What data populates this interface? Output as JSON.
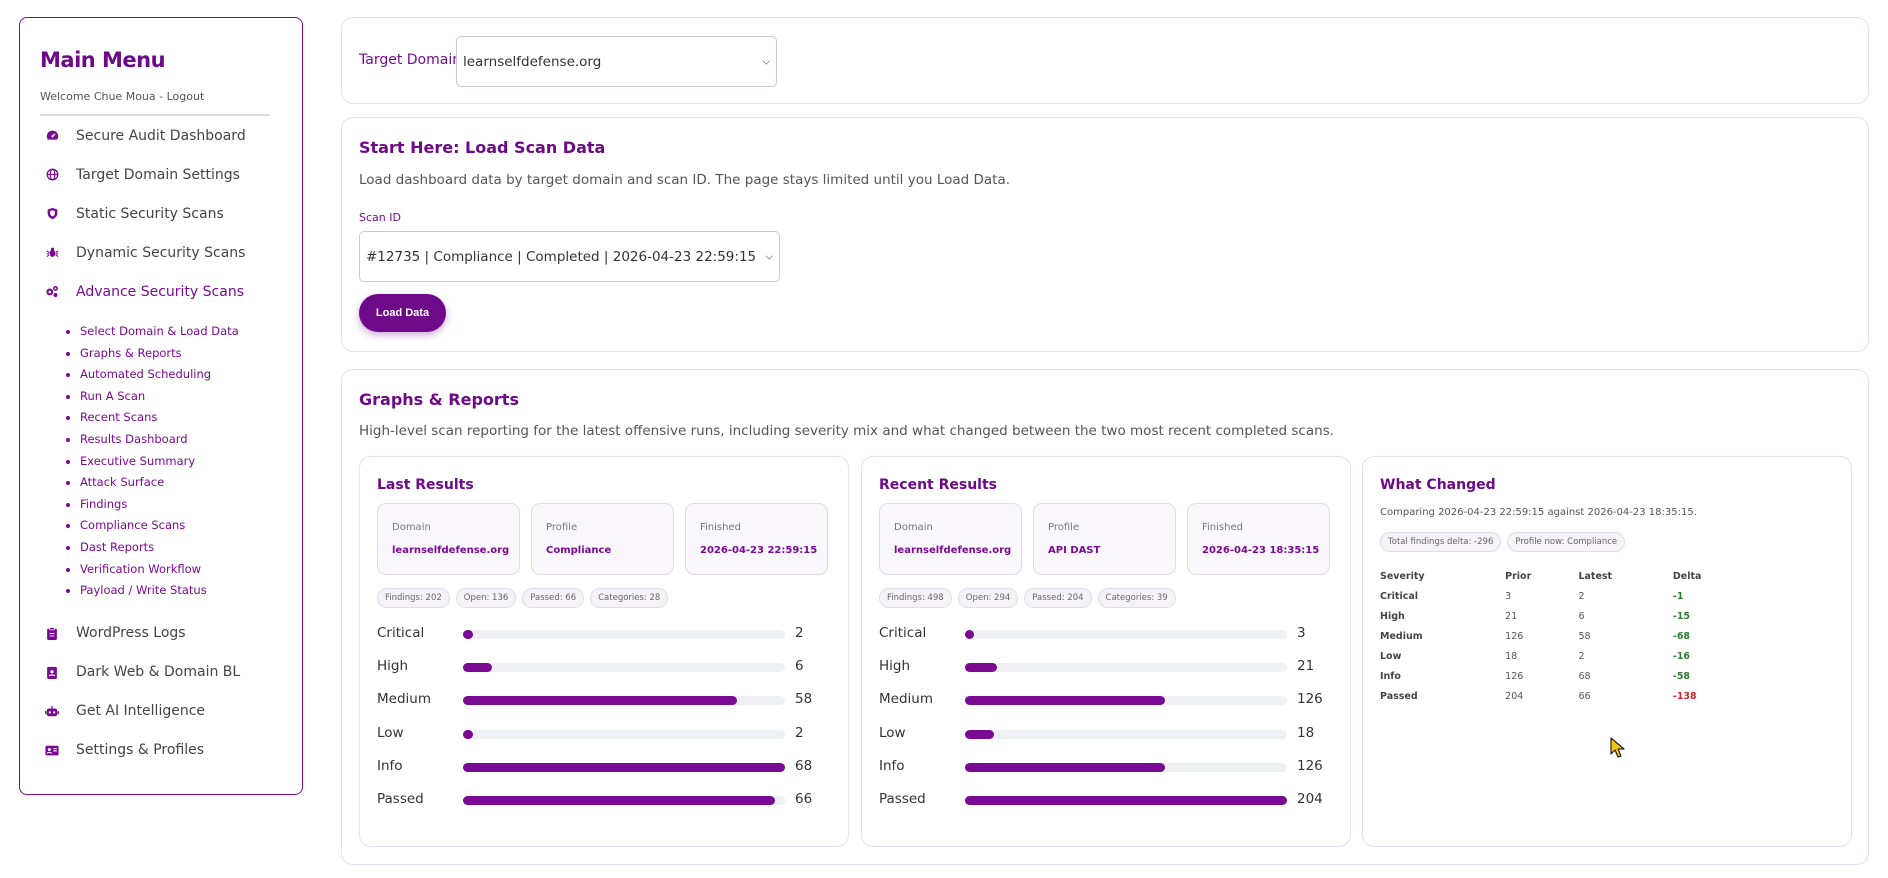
{
  "sidebar": {
    "title": "Main Menu",
    "welcome": "Welcome Chue Moua - Logout",
    "items_top": [
      {
        "label": "Secure Audit Dashboard",
        "icon": "gauge-icon"
      },
      {
        "label": "Target Domain Settings",
        "icon": "globe-icon"
      },
      {
        "label": "Static Security Scans",
        "icon": "shield-icon"
      },
      {
        "label": "Dynamic Security Scans",
        "icon": "bug-icon"
      },
      {
        "label": "Advance Security Scans",
        "icon": "gears-icon"
      }
    ],
    "subitems": [
      "Select Domain & Load Data",
      "Graphs & Reports",
      "Automated Scheduling",
      "Run A Scan",
      "Recent Scans",
      "Results Dashboard",
      "Executive Summary",
      "Attack Surface",
      "Findings",
      "Compliance Scans",
      "Dast Reports",
      "Verification Workflow",
      "Payload / Write Status"
    ],
    "items_bottom": [
      {
        "label": "WordPress Logs",
        "icon": "clipboard-icon"
      },
      {
        "label": "Dark Web & Domain BL",
        "icon": "id-badge-icon"
      },
      {
        "label": "Get AI Intelligence",
        "icon": "robot-icon"
      },
      {
        "label": "Settings & Profiles",
        "icon": "id-card-icon"
      }
    ]
  },
  "target": {
    "label": "Target Domain",
    "selected": "learnselfdefense.org"
  },
  "load": {
    "title": "Start Here: Load Scan Data",
    "description": "Load dashboard data by target domain and scan ID. The page stays limited until you Load Data.",
    "scan_id_label": "Scan ID",
    "scan_selected": "#12735 | Compliance | Completed | 2026-04-23 22:59:15",
    "button": "Load Data"
  },
  "graphs": {
    "title": "Graphs & Reports",
    "description": "High-level scan reporting for the latest offensive runs, including severity mix and what changed between the two most recent completed scans.",
    "last": {
      "title": "Last Results",
      "domain_label": "Domain",
      "domain": "learnselfdefense.org",
      "profile_label": "Profile",
      "profile": "Compliance",
      "finished_label": "Finished",
      "finished": "2026-04-23 22:59:15",
      "pills": [
        "Findings: 202",
        "Open: 136",
        "Passed: 66",
        "Categories: 28"
      ],
      "bars": [
        {
          "name": "Critical",
          "value": 2,
          "fill_pct": 3
        },
        {
          "name": "High",
          "value": 6,
          "fill_pct": 9
        },
        {
          "name": "Medium",
          "value": 58,
          "fill_pct": 85
        },
        {
          "name": "Low",
          "value": 2,
          "fill_pct": 3
        },
        {
          "name": "Info",
          "value": 68,
          "fill_pct": 100
        },
        {
          "name": "Passed",
          "value": 66,
          "fill_pct": 97
        }
      ]
    },
    "recent": {
      "title": "Recent Results",
      "domain_label": "Domain",
      "domain": "learnselfdefense.org",
      "profile_label": "Profile",
      "profile": "API DAST",
      "finished_label": "Finished",
      "finished": "2026-04-23 18:35:15",
      "pills": [
        "Findings: 498",
        "Open: 294",
        "Passed: 204",
        "Categories: 39"
      ],
      "bars": [
        {
          "name": "Critical",
          "value": 3,
          "fill_pct": 1.5
        },
        {
          "name": "High",
          "value": 21,
          "fill_pct": 10
        },
        {
          "name": "Medium",
          "value": 126,
          "fill_pct": 62
        },
        {
          "name": "Low",
          "value": 18,
          "fill_pct": 9
        },
        {
          "name": "Info",
          "value": 126,
          "fill_pct": 62
        },
        {
          "name": "Passed",
          "value": 204,
          "fill_pct": 100
        }
      ]
    },
    "changed": {
      "title": "What Changed",
      "comparing": "Comparing 2026-04-23 22:59:15 against 2026-04-23 18:35:15.",
      "pills": [
        "Total findings delta: -296",
        "Profile now: Compliance"
      ],
      "headers": [
        "Severity",
        "Prior",
        "Latest",
        "Delta"
      ],
      "rows": [
        {
          "sev": "Critical",
          "prior": "3",
          "latest": "2",
          "delta": "-1",
          "good": true
        },
        {
          "sev": "High",
          "prior": "21",
          "latest": "6",
          "delta": "-15",
          "good": true
        },
        {
          "sev": "Medium",
          "prior": "126",
          "latest": "58",
          "delta": "-68",
          "good": true
        },
        {
          "sev": "Low",
          "prior": "18",
          "latest": "2",
          "delta": "-16",
          "good": true
        },
        {
          "sev": "Info",
          "prior": "126",
          "latest": "68",
          "delta": "-58",
          "good": true
        },
        {
          "sev": "Passed",
          "prior": "204",
          "latest": "66",
          "delta": "-138",
          "good": false
        }
      ]
    }
  },
  "colors": {
    "accent": "#7a0a94",
    "good": "#2e7d32",
    "bad": "#c62828",
    "cursor": "#f5c518"
  }
}
